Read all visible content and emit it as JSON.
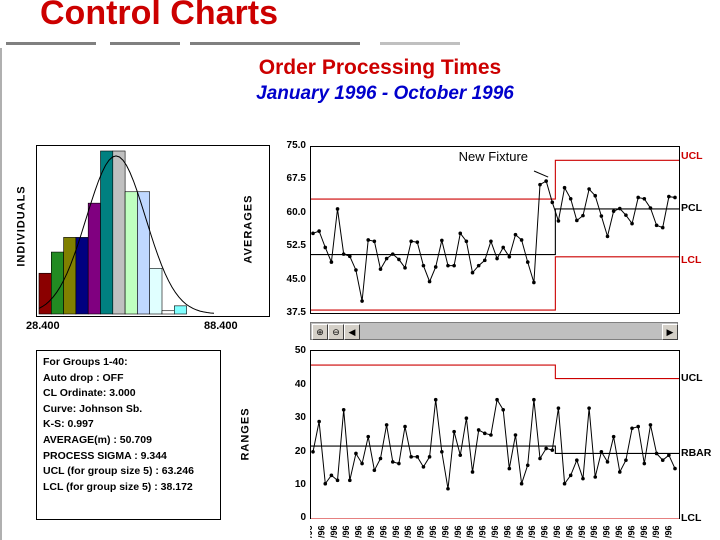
{
  "slide_title": "Control Charts",
  "chart": {
    "title": "Order Processing Times",
    "subtitle": "January 1996 - October 1996"
  },
  "histogram": {
    "ylabel": "INDIVIDUALS",
    "x_min_label": "28.400",
    "x_max_label": "88.400",
    "bars": [
      {
        "value": 0.25,
        "color": "#8b0000"
      },
      {
        "value": 0.38,
        "color": "#228b22"
      },
      {
        "value": 0.47,
        "color": "#808000"
      },
      {
        "value": 0.47,
        "color": "#000080"
      },
      {
        "value": 0.68,
        "color": "#800080"
      },
      {
        "value": 1.0,
        "color": "#008080"
      },
      {
        "value": 1.0,
        "color": "#c0c0c0"
      },
      {
        "value": 0.75,
        "color": "#c0ffc0"
      },
      {
        "value": 0.75,
        "color": "#c0d8ff"
      },
      {
        "value": 0.28,
        "color": "#e0ffff"
      },
      {
        "value": 0.02,
        "color": "#ffffff"
      },
      {
        "value": 0.05,
        "color": "#80ffff"
      }
    ]
  },
  "stats": {
    "lines": [
      "For Groups 1-40:",
      "Auto drop : OFF",
      "CL Ordinate: 3.000",
      "Curve: Johnson Sb.",
      "K-S: 0.997",
      "AVERAGE(m) : 50.709",
      "PROCESS SIGMA : 9.344",
      "UCL (for group size 5) : 63.246",
      "LCL (for group size 5) : 38.172"
    ]
  },
  "averages_chart": {
    "ylabel": "AVERAGES",
    "y_ticks": [
      "75.0",
      "67.5",
      "60.0",
      "52.5",
      "45.0",
      "37.5"
    ],
    "annotation": "New Fixture",
    "right_labels": [
      "UCL",
      "PCL",
      "LCL"
    ]
  },
  "ranges_chart": {
    "ylabel": "RANGES",
    "y_ticks": [
      "50",
      "40",
      "30",
      "20",
      "10",
      "0"
    ],
    "right_labels": [
      "UCL",
      "RBAR",
      "LCL"
    ]
  },
  "x_axis_tick_label": "/96",
  "chart_data": [
    {
      "type": "line",
      "title": "Order Processing Times",
      "subtitle": "January 1996 - October 1996",
      "ylabel": "AVERAGES",
      "ylim": [
        37.5,
        75.0
      ],
      "y_ticks": [
        75.0,
        67.5,
        60.0,
        52.5,
        45.0,
        37.5
      ],
      "x": [
        1,
        2,
        3,
        4,
        5,
        6,
        7,
        8,
        9,
        10,
        11,
        12,
        13,
        14,
        15,
        16,
        17,
        18,
        19,
        20,
        21,
        22,
        23,
        24,
        25,
        26,
        27,
        28,
        29,
        30,
        31,
        32,
        33,
        34,
        35,
        36,
        37,
        38,
        39,
        40,
        41,
        42,
        43,
        44,
        45,
        46,
        47,
        48,
        49,
        50,
        51,
        52,
        53,
        54,
        55,
        56,
        57,
        58,
        59,
        60
      ],
      "series": [
        {
          "name": "AVERAGES",
          "values": [
            55.5,
            56,
            52.3,
            49,
            61,
            50.8,
            50.3,
            47.2,
            40.2,
            54,
            53.7,
            47.4,
            49.8,
            50.8,
            49.6,
            47.7,
            53.7,
            53.5,
            48.2,
            44.6,
            47.9,
            53.9,
            48.2,
            48.2,
            55.5,
            53.7,
            46.6,
            48.2,
            49.4,
            53.7,
            49.8,
            52.3,
            50.2,
            55.2,
            54,
            49,
            44.4,
            66.5,
            67.3,
            62.5,
            58.3,
            65.8,
            63.3,
            58.4,
            59.5,
            65.5,
            64,
            59.4,
            54.8,
            60.5,
            61.1,
            59.6,
            57.7,
            63.6,
            63.3,
            61.2,
            57.3,
            56.8,
            63.8,
            63.6
          ]
        }
      ],
      "control_limits": {
        "phase1": {
          "UCL": 63.246,
          "PCL": 50.709,
          "LCL": 38.172,
          "groups": "1-40"
        },
        "phase2": {
          "UCL": 72.0,
          "PCL": 61.0,
          "LCL": 50.2
        }
      },
      "annotations": [
        "New Fixture"
      ]
    },
    {
      "type": "line",
      "ylabel": "RANGES",
      "ylim": [
        0,
        50
      ],
      "y_ticks": [
        50,
        40,
        30,
        20,
        10,
        0
      ],
      "x": [
        1,
        2,
        3,
        4,
        5,
        6,
        7,
        8,
        9,
        10,
        11,
        12,
        13,
        14,
        15,
        16,
        17,
        18,
        19,
        20,
        21,
        22,
        23,
        24,
        25,
        26,
        27,
        28,
        29,
        30,
        31,
        32,
        33,
        34,
        35,
        36,
        37,
        38,
        39,
        40,
        41,
        42,
        43,
        44,
        45,
        46,
        47,
        48,
        49,
        50,
        51,
        52,
        53,
        54,
        55,
        56,
        57,
        58,
        59,
        60
      ],
      "series": [
        {
          "name": "RANGES",
          "values": [
            20,
            29,
            10.5,
            13,
            11.5,
            32.5,
            11.5,
            19.5,
            16.5,
            24.5,
            14.5,
            18,
            28,
            17,
            16.5,
            27.5,
            18.5,
            18.5,
            15.5,
            18.5,
            35.5,
            20,
            9,
            26,
            19,
            30,
            14,
            26.5,
            25.5,
            25,
            35.5,
            32.5,
            15,
            25,
            10.5,
            16,
            35.5,
            18,
            21,
            20.5,
            33,
            10.5,
            13,
            17.5,
            12,
            33,
            12.5,
            20,
            17,
            24.5,
            14,
            17.5,
            27,
            27.5,
            16.5,
            28,
            19.5,
            17.5,
            19,
            15
          ]
        }
      ],
      "control_limits": {
        "phase1": {
          "UCL": 45.8,
          "RBAR": 21.7,
          "LCL": 0
        },
        "phase2": {
          "UCL": 41.8,
          "RBAR": 19.5,
          "LCL": 0
        }
      }
    }
  ]
}
